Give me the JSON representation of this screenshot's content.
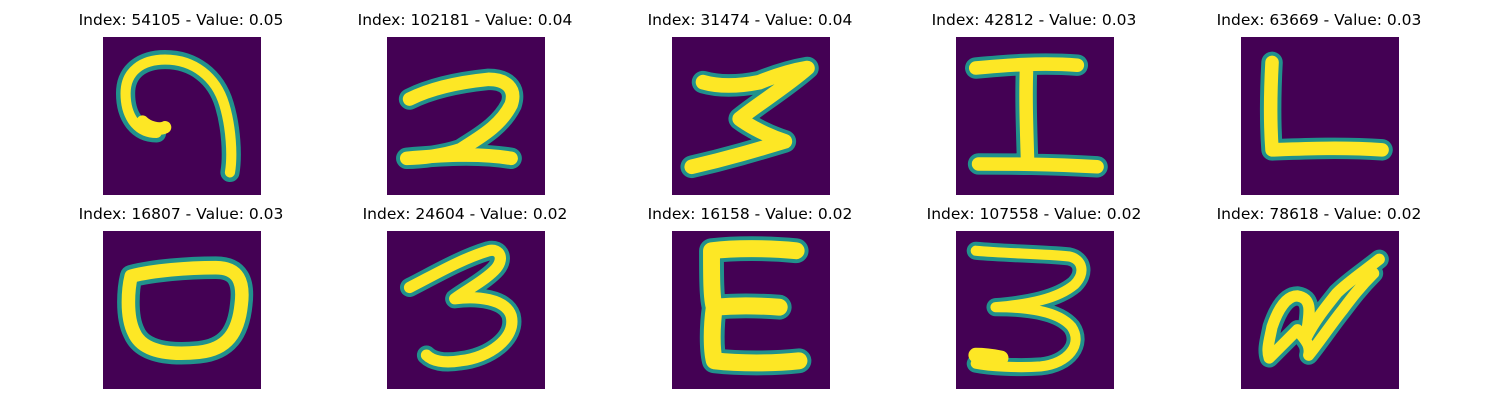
{
  "chart_data": {
    "type": "image_grid",
    "colormap": "viridis",
    "colors": {
      "background": "#440154",
      "stroke_core": "#fde725",
      "stroke_edge": "#21918c"
    },
    "axes_visible": false,
    "panels": [
      {
        "title": "Index: 54105 - Value: 0.05",
        "index": 54105,
        "value": 0.05,
        "glyph": "9-like spiral"
      },
      {
        "title": "Index: 102181 - Value: 0.04",
        "index": 102181,
        "value": 0.04,
        "glyph": "2"
      },
      {
        "title": "Index: 31474 - Value: 0.04",
        "index": 31474,
        "value": 0.04,
        "glyph": "Z-like zigzag"
      },
      {
        "title": "Index: 42812 - Value: 0.03",
        "index": 42812,
        "value": 0.03,
        "glyph": "I"
      },
      {
        "title": "Index: 63669 - Value: 0.03",
        "index": 63669,
        "value": 0.03,
        "glyph": "L"
      },
      {
        "title": "Index: 16807 - Value: 0.03",
        "index": 16807,
        "value": 0.03,
        "glyph": "0"
      },
      {
        "title": "Index: 24604 - Value: 0.02",
        "index": 24604,
        "value": 0.02,
        "glyph": "3"
      },
      {
        "title": "Index: 16158 - Value: 0.02",
        "index": 16158,
        "value": 0.02,
        "glyph": "E"
      },
      {
        "title": "Index: 107558 - Value: 0.02",
        "index": 107558,
        "value": 0.02,
        "glyph": "3"
      },
      {
        "title": "Index: 78618 - Value: 0.02",
        "index": 78618,
        "value": 0.02,
        "glyph": "loop scribble"
      }
    ]
  }
}
